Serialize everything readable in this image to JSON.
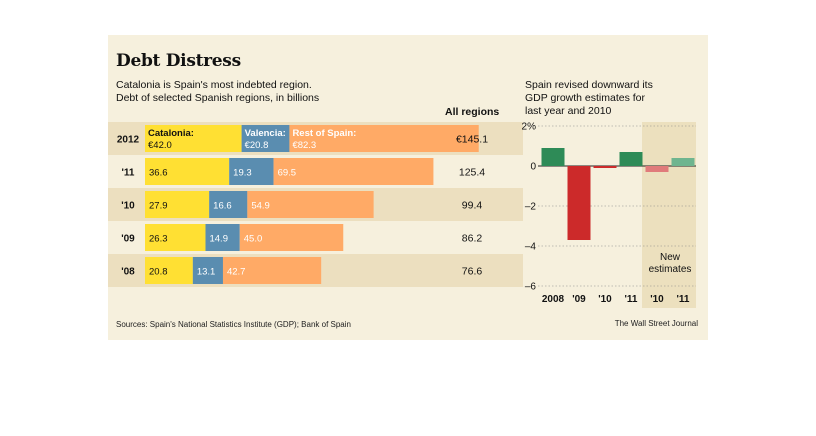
{
  "title": "Debt Distress",
  "subtitle": [
    "Catalonia is Spain's most indebted region.",
    "Debt of selected Spanish regions, in billions"
  ],
  "right_title": [
    "Spain revised downward its",
    "GDP growth estimates for",
    "last year and 2010"
  ],
  "total_header": "All regions",
  "sources": "Sources: Spain's National Statistics Institute (GDP); Bank of Spain",
  "credit": "The Wall Street Journal",
  "colors": {
    "catalonia": "#ffe033",
    "valencia": "#5a8db0",
    "rest": "#ffaa66",
    "positive": "#2e8b57",
    "negative": "#cc2a2a",
    "positive_estimate": "#6fb58f",
    "negative_estimate": "#e07b7b",
    "row_shade": "#ecdfbf",
    "estimate_shade": "#ece0be"
  },
  "chart_data": [
    {
      "type": "bar",
      "orientation": "horizontal",
      "stacked": true,
      "categories": [
        "2012",
        "'11",
        "'10",
        "'09",
        "'08"
      ],
      "series": [
        {
          "name": "Catalonia:",
          "values": [
            42.0,
            36.6,
            27.9,
            26.3,
            20.8
          ],
          "labels": [
            "€42.0",
            "36.6",
            "27.9",
            "26.3",
            "20.8"
          ]
        },
        {
          "name": "Valencia:",
          "values": [
            20.8,
            19.3,
            16.6,
            14.9,
            13.1
          ],
          "labels": [
            "€20.8",
            "19.3",
            "16.6",
            "14.9",
            "13.1"
          ]
        },
        {
          "name": "Rest of Spain:",
          "values": [
            82.3,
            69.5,
            54.9,
            45.0,
            42.7
          ],
          "labels": [
            "€82.3",
            "69.5",
            "54.9",
            "45.0",
            "42.7"
          ]
        }
      ],
      "totals": [
        "€145.1",
        "125.4",
        "99.4",
        "86.2",
        "76.6"
      ]
    },
    {
      "type": "bar",
      "categories": [
        "2008",
        "'09",
        "'10",
        "'11",
        "'10",
        "'11"
      ],
      "values": [
        0.9,
        -3.7,
        -0.1,
        0.7,
        -0.3,
        0.4
      ],
      "estimate_flags": [
        false,
        false,
        false,
        false,
        true,
        true
      ],
      "estimate_label": [
        "New",
        "estimates"
      ],
      "ylim": [
        -6,
        2
      ],
      "yticks": [
        2,
        0,
        -2,
        -4,
        -6
      ],
      "ytick_labels": [
        "2%",
        "0",
        "–2",
        "–4",
        "–6"
      ],
      "grid": true
    }
  ]
}
